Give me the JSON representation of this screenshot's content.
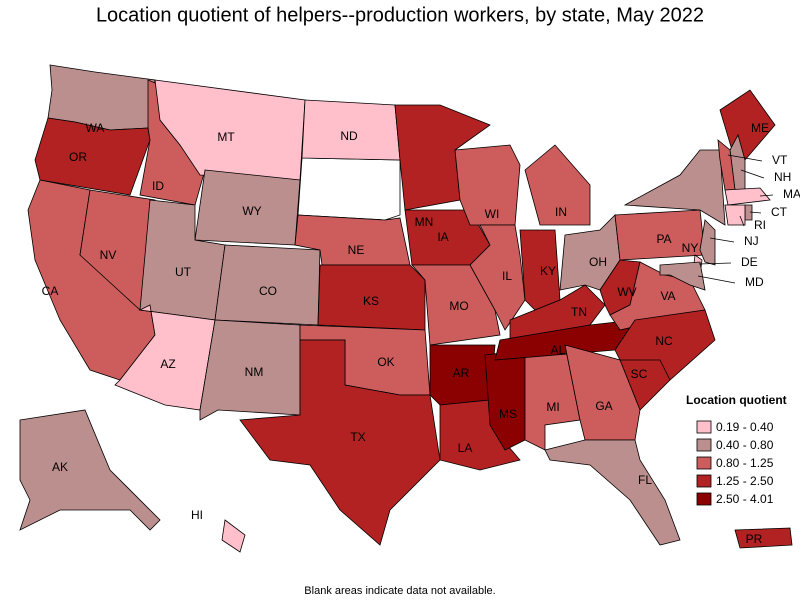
{
  "title": "Location quotient of helpers--production workers, by state, May 2022",
  "footnote": "Blank areas indicate data not available.",
  "legend": {
    "title": "Location quotient",
    "items": [
      {
        "label": "0.19 - 0.40",
        "color": "#ffc0cb"
      },
      {
        "label": "0.40 - 0.80",
        "color": "#bc8f8f"
      },
      {
        "label": "0.80 - 1.25",
        "color": "#cd5c5c"
      },
      {
        "label": "1.25 - 2.50",
        "color": "#b22222"
      },
      {
        "label": "2.50 - 4.01",
        "color": "#8b0000"
      }
    ]
  },
  "states": [
    {
      "label": "WA",
      "color": "#bc8f8f"
    },
    {
      "label": "OR",
      "color": "#b22222"
    },
    {
      "label": "CA",
      "color": "#cd5c5c"
    },
    {
      "label": "NV",
      "color": "#cd5c5c"
    },
    {
      "label": "ID",
      "color": "#cd5c5c"
    },
    {
      "label": "MT",
      "color": "#ffc0cb"
    },
    {
      "label": "WY",
      "color": "#bc8f8f"
    },
    {
      "label": "UT",
      "color": "#bc8f8f"
    },
    {
      "label": "AZ",
      "color": "#ffc0cb"
    },
    {
      "label": "CO",
      "color": "#bc8f8f"
    },
    {
      "label": "NM",
      "color": "#bc8f8f"
    },
    {
      "label": "ND",
      "color": "#ffc0cb"
    },
    {
      "label": "NE",
      "color": "#cd5c5c"
    },
    {
      "label": "KS",
      "color": "#b22222"
    },
    {
      "label": "OK",
      "color": "#cd5c5c"
    },
    {
      "label": "TX",
      "color": "#b22222"
    },
    {
      "label": "MN",
      "color": "#b22222"
    },
    {
      "label": "IA",
      "color": "#b22222"
    },
    {
      "label": "MO",
      "color": "#cd5c5c"
    },
    {
      "label": "AR",
      "color": "#8b0000"
    },
    {
      "label": "LA",
      "color": "#b22222"
    },
    {
      "label": "WI",
      "color": "#cd5c5c"
    },
    {
      "label": "IL",
      "color": "#cd5c5c"
    },
    {
      "label": "MS",
      "color": "#8b0000"
    },
    {
      "label": "MI",
      "color": "#cd5c5c"
    },
    {
      "label": "IN",
      "color": "#cd5c5c"
    },
    {
      "label": "KY",
      "color": "#b22222"
    },
    {
      "label": "TN",
      "color": "#b22222"
    },
    {
      "label": "AL",
      "color": "#8b0000"
    },
    {
      "label": "OH",
      "color": "#bc8f8f"
    },
    {
      "label": "WV",
      "color": "#b22222"
    },
    {
      "label": "PA",
      "color": "#cd5c5c"
    },
    {
      "label": "NY",
      "color": "#bc8f8f"
    },
    {
      "label": "VA",
      "color": "#cd5c5c"
    },
    {
      "label": "NC",
      "color": "#b22222"
    },
    {
      "label": "SC",
      "color": "#b22222"
    },
    {
      "label": "GA",
      "color": "#cd5c5c"
    },
    {
      "label": "FL",
      "color": "#bc8f8f"
    },
    {
      "label": "ME",
      "color": "#b22222"
    },
    {
      "label": "NH",
      "color": "#bc8f8f"
    },
    {
      "label": "VT",
      "color": "#cd5c5c"
    },
    {
      "label": "MA",
      "color": "#ffc0cb"
    },
    {
      "label": "CT",
      "color": "#bc8f8f"
    },
    {
      "label": "RI",
      "color": "#ffc0cb"
    },
    {
      "label": "NJ",
      "color": "#bc8f8f"
    },
    {
      "label": "DE",
      "color": "#ffc0cb"
    },
    {
      "label": "MD",
      "color": "#bc8f8f"
    },
    {
      "label": "AK",
      "color": "#bc8f8f"
    },
    {
      "label": "HI",
      "color": "#ffc0cb"
    },
    {
      "label": "PR",
      "color": "#b22222"
    }
  ]
}
